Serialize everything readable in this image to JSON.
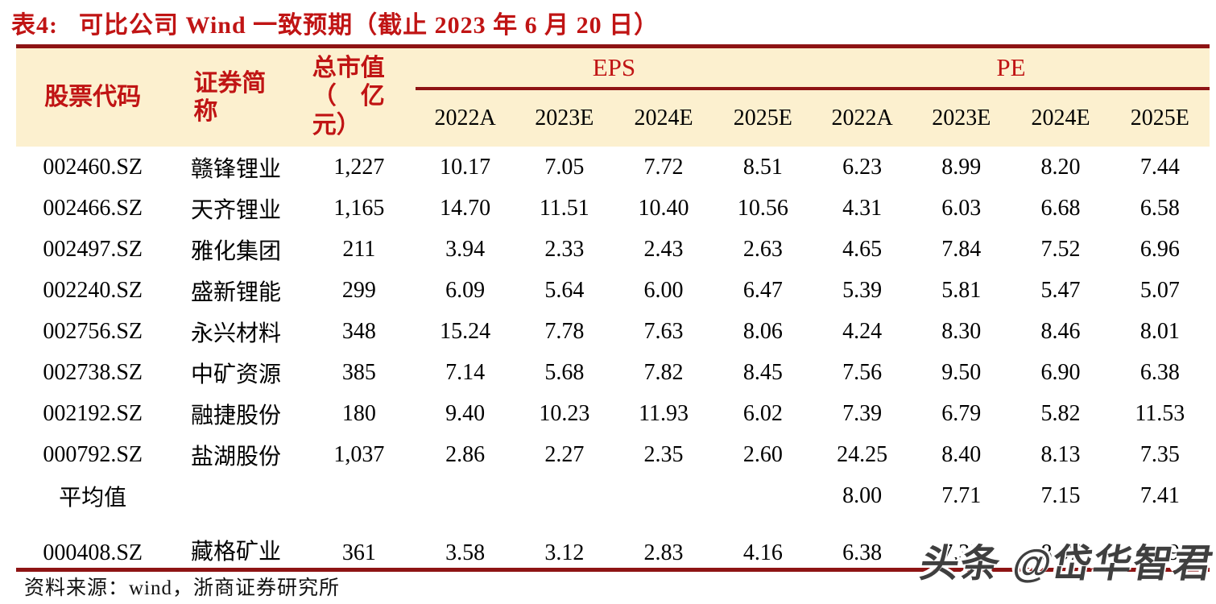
{
  "title": {
    "prefix": "表4:",
    "text": "可比公司 Wind 一致预期（截止 2023 年 6 月 20 日）"
  },
  "table": {
    "header": {
      "stock_code": "股票代码",
      "name": "证券简\n称",
      "market_cap": "总市值\n（　亿\n元）",
      "eps_group": "EPS",
      "pe_group": "PE",
      "year_cols": [
        "2022A",
        "2023E",
        "2024E",
        "2025E",
        "2022A",
        "2023E",
        "2024E",
        "2025E"
      ]
    },
    "rows": [
      {
        "cells": [
          "002460.SZ",
          "赣锋锂业",
          "1,227",
          "10.17",
          "7.05",
          "7.72",
          "8.51",
          "6.23",
          "8.99",
          "8.20",
          "7.44"
        ]
      },
      {
        "cells": [
          "002466.SZ",
          "天齐锂业",
          "1,165",
          "14.70",
          "11.51",
          "10.40",
          "10.56",
          "4.31",
          "6.03",
          "6.68",
          "6.58"
        ]
      },
      {
        "cells": [
          "002497.SZ",
          "雅化集团",
          "211",
          "3.94",
          "2.33",
          "2.43",
          "2.63",
          "4.65",
          "7.84",
          "7.52",
          "6.96"
        ]
      },
      {
        "cells": [
          "002240.SZ",
          "盛新锂能",
          "299",
          "6.09",
          "5.64",
          "6.00",
          "6.47",
          "5.39",
          "5.81",
          "5.47",
          "5.07"
        ]
      },
      {
        "cells": [
          "002756.SZ",
          "永兴材料",
          "348",
          "15.24",
          "7.78",
          "7.63",
          "8.06",
          "4.24",
          "8.30",
          "8.46",
          "8.01"
        ]
      },
      {
        "cells": [
          "002738.SZ",
          "中矿资源",
          "385",
          "7.14",
          "5.68",
          "7.82",
          "8.45",
          "7.56",
          "9.50",
          "6.90",
          "6.38"
        ]
      },
      {
        "cells": [
          "002192.SZ",
          "融捷股份",
          "180",
          "9.40",
          "10.23",
          "11.93",
          "6.02",
          "7.39",
          "6.79",
          "5.82",
          "11.53"
        ]
      },
      {
        "cells": [
          "000792.SZ",
          "盐湖股份",
          "1,037",
          "2.86",
          "2.27",
          "2.35",
          "2.60",
          "24.25",
          "8.40",
          "8.13",
          "7.35"
        ]
      },
      {
        "cells": [
          "平均值",
          "",
          "",
          "",
          "",
          "",
          "",
          "8.00",
          "7.71",
          "7.15",
          "7.41"
        ],
        "variant": "average"
      },
      {
        "cells": [
          "000408.SZ",
          "藏格矿业",
          "361",
          "3.58",
          "3.12",
          "2.83",
          "4.16",
          "6.38",
          "7.32",
          "8.07",
          "5.49"
        ],
        "variant": "last"
      }
    ]
  },
  "source": "资料来源：wind，浙商证券研究所",
  "watermark": "头条 @岱华智君",
  "colors": {
    "rule_red": "#8e1414",
    "title_red": "#c01414",
    "header_bg": "#fcf0cf",
    "body_text": "#000000",
    "watermark_gray": "#3f3f3f"
  }
}
